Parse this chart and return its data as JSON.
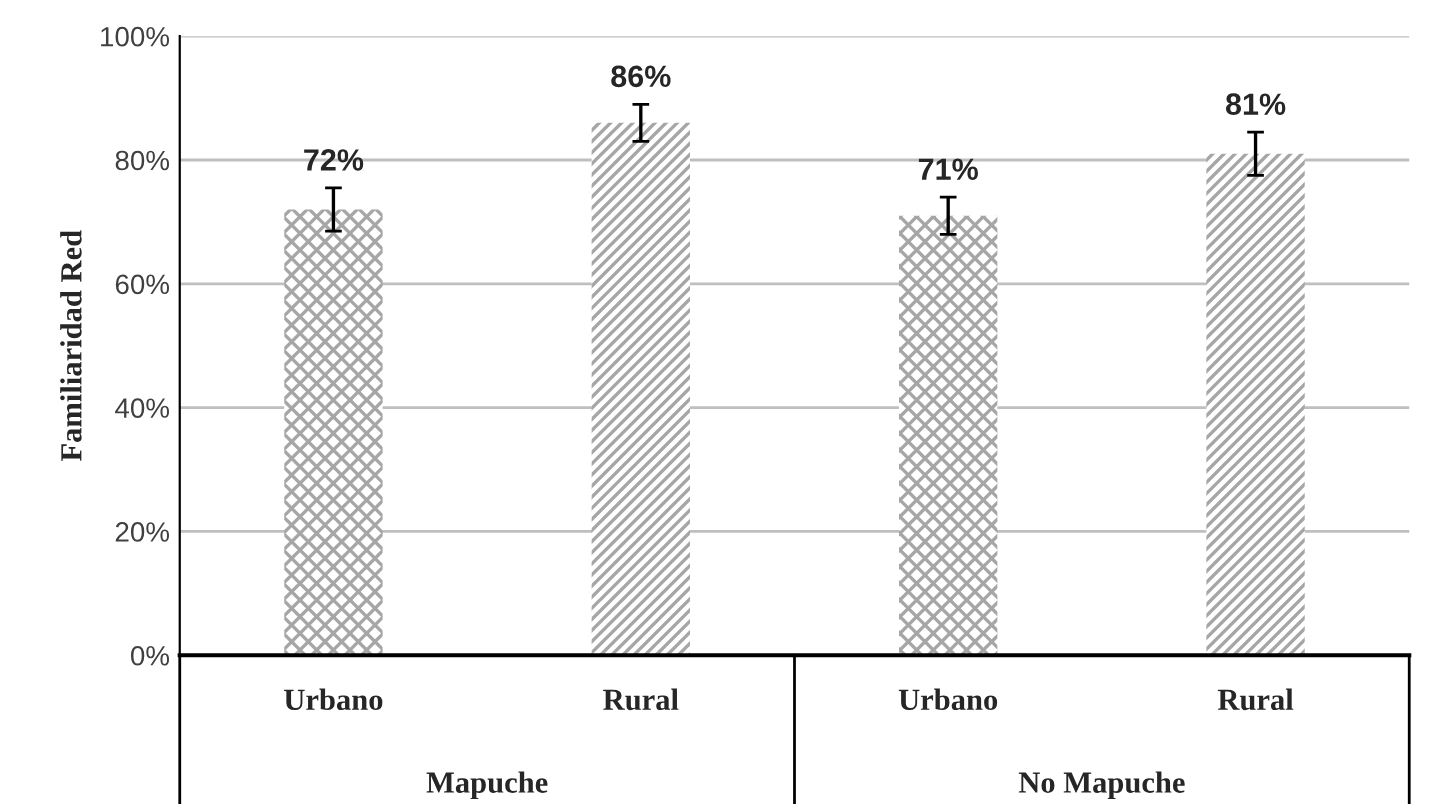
{
  "chart_data": {
    "type": "bar",
    "ylabel": "Familiaridad Red",
    "categories": [
      "Urbano",
      "Rural",
      "Urbano",
      "Rural"
    ],
    "values": [
      72,
      86,
      71,
      81
    ],
    "errors": [
      3.5,
      3,
      3,
      3.5
    ],
    "colors": [
      "#a6a6a6",
      "#a6a6a6",
      "#a6a6a6",
      "#a6a6a6"
    ],
    "ylim": [
      0,
      100
    ],
    "yticks": [
      {
        "value": 0,
        "label": "0%"
      },
      {
        "value": 20,
        "label": "20%"
      },
      {
        "value": 40,
        "label": "40%"
      },
      {
        "value": 60,
        "label": "60%"
      },
      {
        "value": 80,
        "label": "80%"
      },
      {
        "value": 100,
        "label": "100%"
      }
    ],
    "value_labels": [
      "72%",
      "86%",
      "71%",
      "81%"
    ],
    "annotations": [
      "Mapuche",
      "No Mapuche"
    ],
    "grid": "y",
    "legend": false
  }
}
